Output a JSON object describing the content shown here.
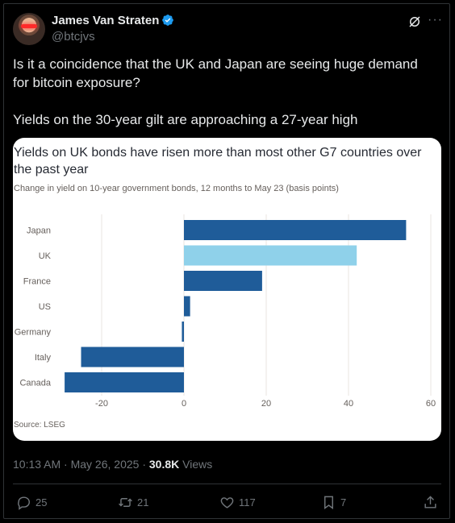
{
  "author": {
    "name": "James Van Straten",
    "handle": "@btcjvs"
  },
  "tweet": {
    "paragraph1": "Is it a coincidence that the UK and Japan are seeing huge demand for bitcoin exposure?",
    "paragraph2": "Yields on the 30-year gilt are approaching a 27-year high"
  },
  "colors": {
    "uk_bar": "#8fd1ea",
    "other_bars": "#1f5c99"
  },
  "chart_data": {
    "type": "bar",
    "orientation": "horizontal",
    "title": "Yields on UK bonds have risen more than most other G7 countries over the past year",
    "subtitle": "Change in yield on 10-year government bonds, 12 months to May 23 (basis points)",
    "categories": [
      "Japan",
      "UK",
      "France",
      "US",
      "Germany",
      "Italy",
      "Canada"
    ],
    "values": [
      54,
      42,
      19,
      1.5,
      -0.5,
      -25,
      -29
    ],
    "xlim": [
      -30,
      60
    ],
    "xticks": [
      "-20",
      "0",
      "20",
      "40",
      "60"
    ],
    "xtick_values": [
      -20,
      0,
      20,
      40,
      60
    ],
    "grid": true,
    "source": "Source: LSEG"
  },
  "meta": {
    "time": "10:13 AM · May 26, 2025 · ",
    "views_count": "30.8K",
    "views_label": " Views"
  },
  "actions": {
    "replies": "25",
    "reposts": "21",
    "likes": "117",
    "bookmarks": "7"
  }
}
